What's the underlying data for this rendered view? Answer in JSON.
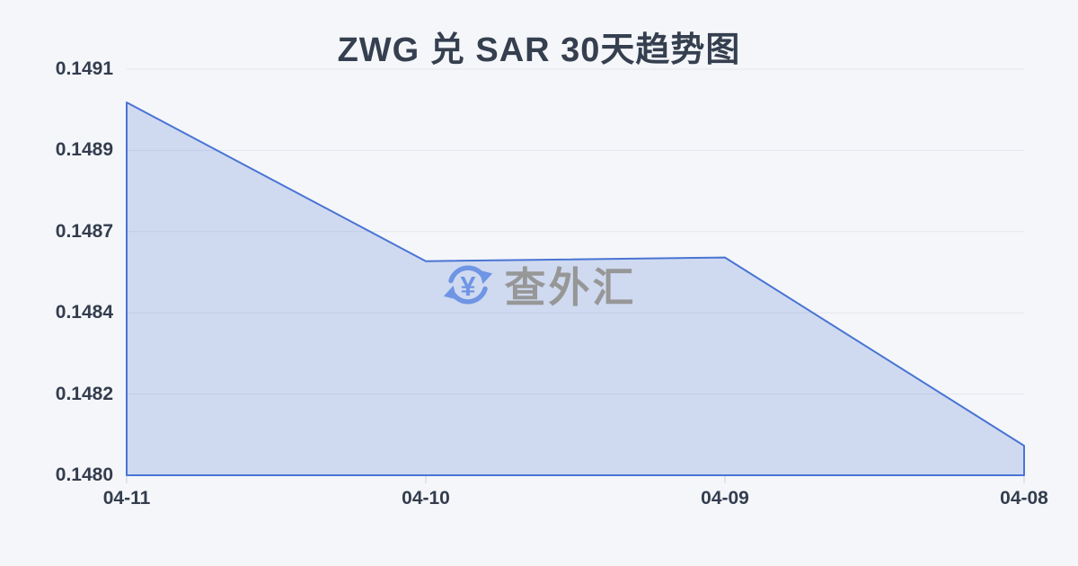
{
  "chart_data": {
    "type": "area",
    "title": "ZWG 兑 SAR 30天趋势图",
    "categories": [
      "04-11",
      "04-10",
      "04-09",
      "04-08"
    ],
    "values": [
      0.14901,
      0.14858,
      0.14859,
      0.14808
    ],
    "ytick_labels": [
      "0.1491",
      "0.1489",
      "0.1487",
      "0.1484",
      "0.1482",
      "0.1480"
    ],
    "ylim": [
      0.148,
      0.1491
    ],
    "xlabel": "",
    "ylabel": "",
    "grid": true,
    "legend": "none",
    "line_color": "#4a74d4",
    "fill_color": "rgba(77,118,213,0.22)",
    "grid_color": "#e3e6ec",
    "tick_color": "#ccd1d9",
    "background": "#f4f6f9",
    "label_color": "#333d4e",
    "title_color": "#353f4f"
  },
  "watermark": {
    "text": "查外汇",
    "icon": "currency-exchange-icon",
    "icon_symbol": "¥",
    "icon_color": "#6f95e4",
    "text_color": "#979797"
  }
}
